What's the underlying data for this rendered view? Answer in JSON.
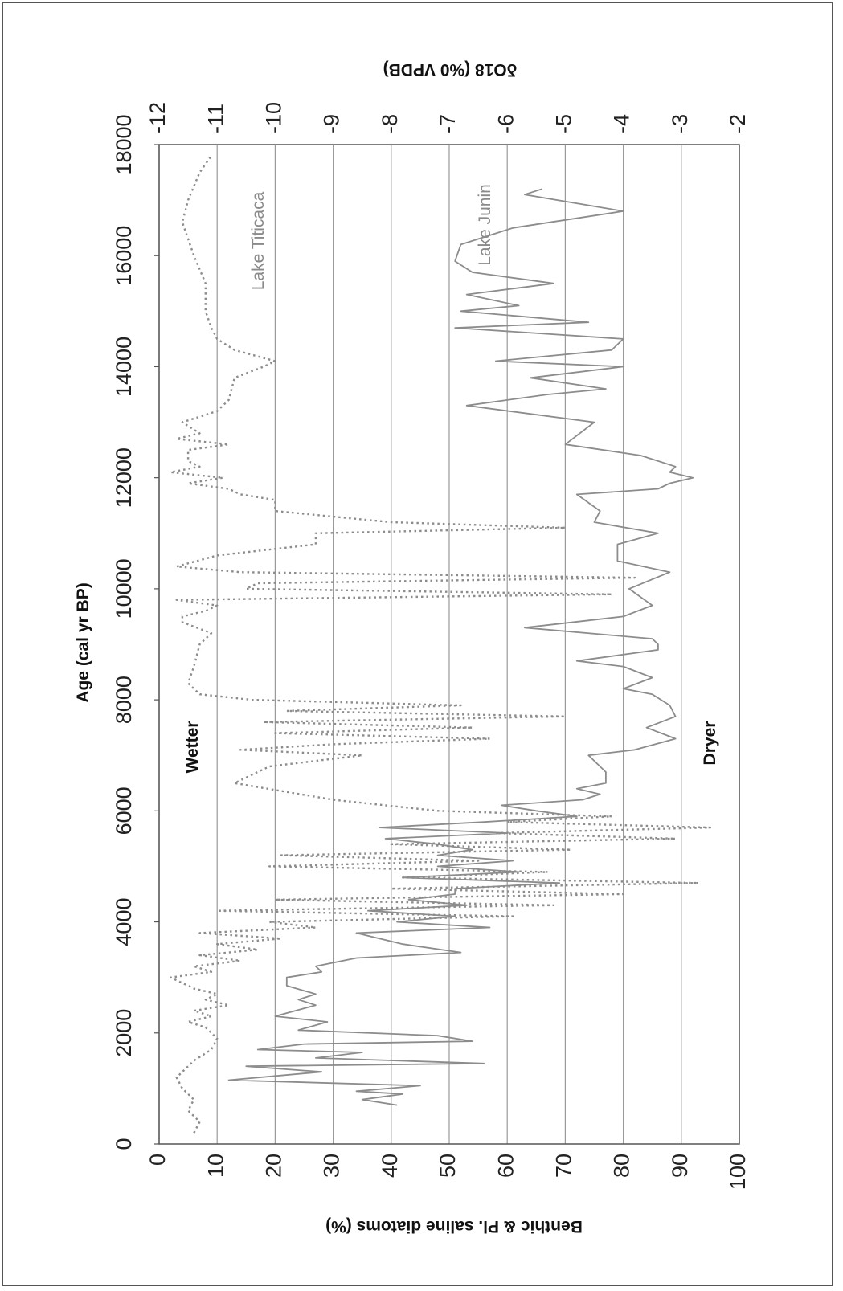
{
  "chart_data": {
    "type": "line",
    "orientation": "rotated-90-clockwise",
    "title": "",
    "xlabel": "Age (cal yr BP)",
    "xlim": [
      0,
      18000
    ],
    "xticks": [
      0,
      2000,
      4000,
      6000,
      8000,
      10000,
      12000,
      14000,
      16000,
      18000
    ],
    "y_left_label": "Benthic & Pl. saline diatoms (%)",
    "y_left_lim": [
      0,
      100
    ],
    "y_left_ticks": [
      0,
      10,
      20,
      30,
      40,
      50,
      60,
      70,
      80,
      90,
      100
    ],
    "y_right_label": "δO18 (%0 VPDB)",
    "y_right_lim": [
      -12,
      -2
    ],
    "y_right_ticks": [
      -12,
      -11,
      -10,
      -9,
      -8,
      -7,
      -6,
      -5,
      -4,
      -3,
      -2
    ],
    "grid": true,
    "annotations": [
      "Wetter",
      "Dryer"
    ],
    "line_color": "#8c8c8c",
    "series": [
      {
        "name": "Lake Titicaca",
        "axis": "left",
        "style": "dotted",
        "x": [
          200,
          400,
          600,
          800,
          1000,
          1200,
          1500,
          1700,
          1900,
          2100,
          2200,
          2300,
          2400,
          2500,
          2600,
          2700,
          2800,
          2900,
          3000,
          3100,
          3200,
          3300,
          3400,
          3500,
          3600,
          3700,
          3800,
          3900,
          4000,
          4100,
          4200,
          4300,
          4400,
          4500,
          4600,
          4700,
          4800,
          4900,
          5000,
          5100,
          5200,
          5300,
          5400,
          5500,
          5600,
          5700,
          5800,
          5900,
          6000,
          6200,
          6500,
          6800,
          7000,
          7100,
          7200,
          7300,
          7400,
          7500,
          7600,
          7700,
          7800,
          7900,
          8000,
          8100,
          8300,
          8600,
          9000,
          9200,
          9400,
          9500,
          9600,
          9700,
          9800,
          9900,
          10000,
          10100,
          10200,
          10300,
          10400,
          10600,
          10800,
          11000,
          11100,
          11200,
          11400,
          11600,
          11700,
          11800,
          11900,
          12000,
          12100,
          12200,
          12300,
          12500,
          12600,
          12700,
          12800,
          13000,
          13200,
          13400,
          13800,
          14000,
          14100,
          14300,
          14500,
          14700,
          15000,
          15500,
          16000,
          16300,
          16600,
          17000,
          17500,
          17800
        ],
        "values": [
          6,
          7,
          5,
          6,
          4,
          3,
          6,
          9,
          10,
          8,
          5,
          9,
          6,
          12,
          8,
          10,
          6,
          4,
          2,
          9,
          6,
          14,
          7,
          17,
          10,
          21,
          7,
          27,
          19,
          61,
          10,
          68,
          20,
          80,
          40,
          93,
          42,
          67,
          19,
          55,
          21,
          71,
          40,
          89,
          58,
          95,
          60,
          78,
          48,
          30,
          13,
          19,
          35,
          14,
          30,
          57,
          20,
          54,
          18,
          70,
          22,
          52,
          16,
          7,
          5,
          6,
          7,
          9,
          4,
          4,
          8,
          10,
          3,
          78,
          15,
          17,
          82,
          14,
          3,
          10,
          27,
          27,
          70,
          40,
          20,
          20,
          14,
          12,
          5,
          11,
          2,
          7,
          5,
          5,
          12,
          3,
          7,
          4,
          10,
          12,
          13,
          18,
          20,
          13,
          10,
          9,
          8,
          8,
          6,
          5,
          4,
          5,
          7,
          9
        ]
      },
      {
        "name": "Lake Junin",
        "axis": "right",
        "style": "solid",
        "x": [
          700,
          800,
          900,
          950,
          1050,
          1150,
          1300,
          1400,
          1450,
          1550,
          1650,
          1700,
          1800,
          1850,
          1950,
          2050,
          2200,
          2300,
          2500,
          2600,
          2700,
          2850,
          3000,
          3100,
          3200,
          3350,
          3450,
          3600,
          3800,
          3900,
          4000,
          4100,
          4200,
          4300,
          4400,
          4500,
          4600,
          4700,
          4800,
          4900,
          5000,
          5100,
          5200,
          5300,
          5400,
          5500,
          5600,
          5700,
          5800,
          5900,
          6000,
          6100,
          6200,
          6300,
          6400,
          6500,
          6700,
          6900,
          7000,
          7100,
          7300,
          7500,
          7700,
          7900,
          8100,
          8200,
          8400,
          8600,
          8700,
          8900,
          9000,
          9100,
          9300,
          9500,
          9700,
          10000,
          10300,
          10500,
          10800,
          11000,
          11200,
          11400,
          11700,
          11800,
          11900,
          12000,
          12100,
          12200,
          12400,
          12600,
          13000,
          13300,
          13500,
          13600,
          13800,
          14000,
          14100,
          14300,
          14500,
          14700,
          14800,
          15000,
          15100,
          15300,
          15500,
          15700,
          15900,
          16200,
          16500,
          16800,
          17100,
          17200
        ],
        "values": [
          -7.9,
          -8.5,
          -7.8,
          -8.6,
          -7.5,
          -10.8,
          -9.2,
          -10.5,
          -6.4,
          -9.3,
          -8.5,
          -10.3,
          -9.5,
          -6.6,
          -7.2,
          -9.6,
          -9.1,
          -10,
          -9.3,
          -9.6,
          -9.3,
          -9.8,
          -9.8,
          -9.2,
          -9.3,
          -8.6,
          -6.8,
          -7.8,
          -8.6,
          -6.3,
          -7.9,
          -6.9,
          -8.4,
          -6.7,
          -7.7,
          -6.9,
          -6.9,
          -5.1,
          -7.8,
          -5.8,
          -7.2,
          -5.9,
          -7.2,
          -6.6,
          -7.2,
          -8.1,
          -6.0,
          -8.2,
          -6.4,
          -4.8,
          -5.5,
          -6.1,
          -4.7,
          -4.4,
          -4.8,
          -4.3,
          -4.3,
          -4.5,
          -4.6,
          -3.8,
          -3.1,
          -3.6,
          -3.1,
          -3.2,
          -3.5,
          -4.0,
          -3.5,
          -4.0,
          -4.8,
          -3.4,
          -3.4,
          -3.5,
          -5.7,
          -4.0,
          -3.5,
          -3.9,
          -3.2,
          -4.1,
          -4.1,
          -3.4,
          -4.5,
          -4.4,
          -4.8,
          -3.4,
          -3.2,
          -2.8,
          -3.2,
          -3.1,
          -3.7,
          -5.0,
          -4.5,
          -6.7,
          -5.3,
          -4.3,
          -5.6,
          -4.0,
          -6.2,
          -4.2,
          -4.0,
          -6.9,
          -4.6,
          -6.8,
          -5.8,
          -6.7,
          -5.2,
          -6.6,
          -6.9,
          -6.8,
          -5.9,
          -4.0,
          -5.7,
          -5.4
        ]
      }
    ]
  }
}
